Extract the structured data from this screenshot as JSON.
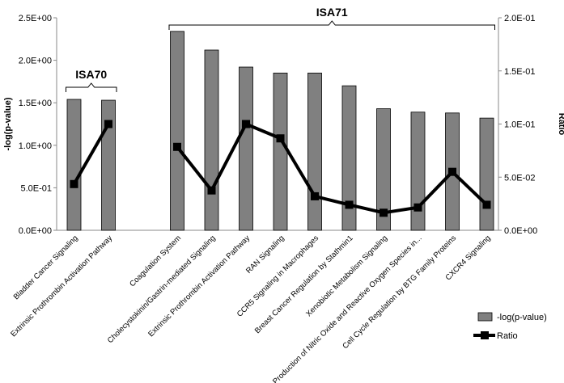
{
  "chart_data": {
    "type": "bar",
    "categories": [
      "Bladder Cancer Signaling",
      "Extrinsic Prothrombin Activation Pathway",
      "",
      "Coagulation System",
      "Cholecystokinin/Gastrin-mediated Signaling",
      "Extrinsic Prothrombin Activation Pathway",
      "RAN Signaling",
      "CCR5 Signaling in Macrophages",
      "Breast Cancer Regulation by Stathmin1",
      "Xenobiotic Metabolism Signaling",
      "Production of Nitric Oxide and Reactive Oxygen Species in...",
      "Cell Cycle Regulation by BTG Family Proteins",
      "CXCR4 Signaling"
    ],
    "series": [
      {
        "name": "-log(p-value)",
        "type": "bar",
        "axis": "left",
        "color": "#808080",
        "values": [
          1.54,
          1.53,
          null,
          2.34,
          2.12,
          1.92,
          1.85,
          1.85,
          1.7,
          1.43,
          1.39,
          1.38,
          1.32
        ]
      },
      {
        "name": "Ratio",
        "type": "line",
        "axis": "right",
        "color": "#000000",
        "values": [
          0.0435,
          0.1,
          null,
          0.0785,
          0.0375,
          0.1,
          0.0865,
          0.032,
          0.024,
          0.0165,
          0.0215,
          0.055,
          0.024
        ]
      }
    ],
    "ylim": [
      0,
      2.5
    ],
    "ylim_right": [
      0,
      0.2
    ],
    "yticks": [
      "0.0E+00",
      "5.0E-01",
      "1.0E+00",
      "1.5E+00",
      "2.0E+00",
      "2.5E+00"
    ],
    "yticks_right": [
      "0.0E+00",
      "5.0E-02",
      "1.0E-01",
      "1.5E-01",
      "2.0E-01"
    ],
    "ylabel": "-log(p-value)",
    "ylabel_right": "Ratio",
    "xlabel": "",
    "title": "",
    "grid": false,
    "legend_position": "bottom-right",
    "groups": [
      {
        "label": "ISA70",
        "start": 0,
        "end": 1
      },
      {
        "label": "ISA71",
        "start": 3,
        "end": 12
      }
    ]
  }
}
